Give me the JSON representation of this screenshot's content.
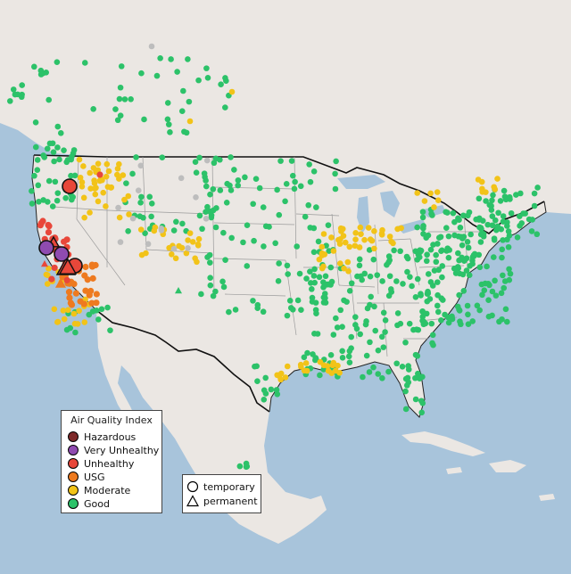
{
  "legend": {
    "title": "Air Quality Index",
    "categories": [
      {
        "label": "Hazardous",
        "color": "#7e2a2a"
      },
      {
        "label": "Very Unhealthy",
        "color": "#8f4bb0"
      },
      {
        "label": "Unhealthy",
        "color": "#e8473a"
      },
      {
        "label": "USG",
        "color": "#ee7a1f"
      },
      {
        "label": "Moderate",
        "color": "#f2c318"
      },
      {
        "label": "Good",
        "color": "#2cc269"
      }
    ]
  },
  "monitor_legend": {
    "temporary": "temporary",
    "permanent": "permanent"
  },
  "colors": {
    "ocean": "#a8c4db",
    "land": "#ebe7e3",
    "border": "#111111",
    "state_line": "#9a9a9a",
    "no_data": "#bdbdbd"
  }
}
